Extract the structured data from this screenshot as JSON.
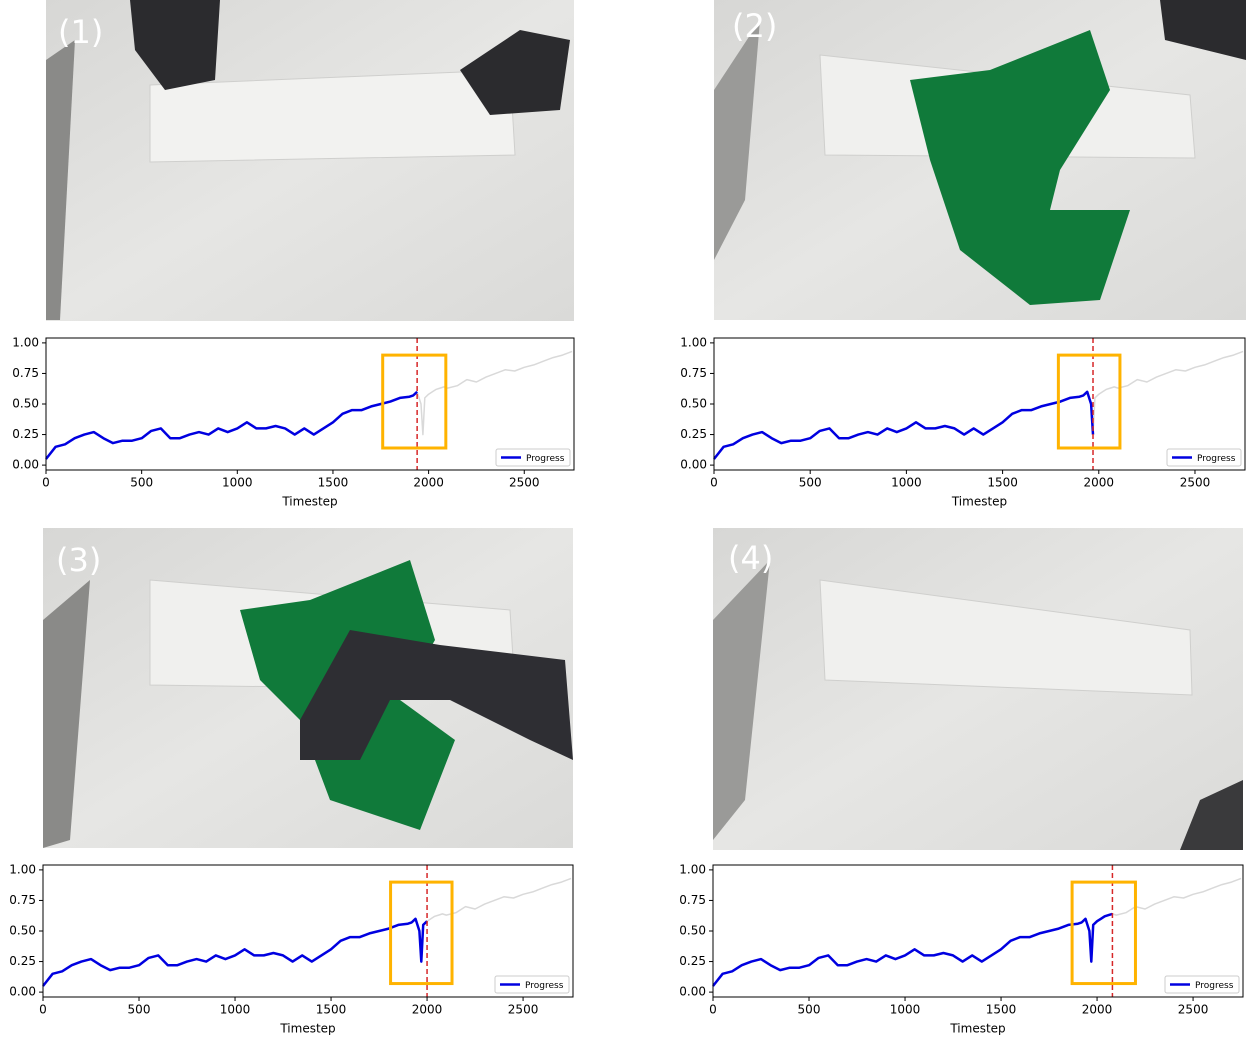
{
  "chart_data": [
    {
      "type": "line",
      "panel_label": "(1)",
      "x_label": "Timestep",
      "x": [
        0,
        50,
        100,
        150,
        200,
        250,
        300,
        350,
        400,
        450,
        500,
        550,
        600,
        650,
        700,
        750,
        800,
        850,
        900,
        950,
        1000,
        1050,
        1100,
        1150,
        1200,
        1250,
        1300,
        1350,
        1400,
        1450,
        1500,
        1550,
        1600,
        1650,
        1700,
        1750,
        1800,
        1850,
        1900,
        1920,
        1940,
        1960,
        1970,
        1980,
        2000,
        2020,
        2040,
        2060,
        2080,
        2100,
        2150,
        2200,
        2250,
        2300,
        2350,
        2400,
        2450,
        2500,
        2550,
        2600,
        2650,
        2700,
        2750
      ],
      "series": [
        {
          "color": "#d9d9d9",
          "values": [
            0.05,
            0.15,
            0.17,
            0.22,
            0.25,
            0.27,
            0.22,
            0.18,
            0.2,
            0.2,
            0.22,
            0.28,
            0.3,
            0.22,
            0.22,
            0.25,
            0.27,
            0.25,
            0.3,
            0.27,
            0.3,
            0.35,
            0.3,
            0.3,
            0.32,
            0.3,
            0.25,
            0.3,
            0.25,
            0.3,
            0.35,
            0.42,
            0.45,
            0.45,
            0.48,
            0.5,
            0.52,
            0.55,
            0.56,
            0.57,
            0.6,
            0.5,
            0.25,
            0.55,
            0.58,
            0.6,
            0.62,
            0.63,
            0.64,
            0.63,
            0.65,
            0.7,
            0.68,
            0.72,
            0.75,
            0.78,
            0.77,
            0.8,
            0.82,
            0.85,
            0.88,
            0.9,
            0.93
          ]
        },
        {
          "name": "Progress",
          "color": "#0000e0",
          "values": [
            0.05,
            0.15,
            0.17,
            0.22,
            0.25,
            0.27,
            0.22,
            0.18,
            0.2,
            0.2,
            0.22,
            0.28,
            0.3,
            0.22,
            0.22,
            0.25,
            0.27,
            0.25,
            0.3,
            0.27,
            0.3,
            0.35,
            0.3,
            0.3,
            0.32,
            0.3,
            0.25,
            0.3,
            0.25,
            0.3,
            0.35,
            0.42,
            0.45,
            0.45,
            0.48,
            0.5,
            0.52,
            0.55,
            0.56,
            0.57,
            0.6,
            null,
            null,
            null,
            null,
            null,
            null,
            null,
            null,
            null,
            null,
            null,
            null,
            null,
            null,
            null,
            null,
            null,
            null,
            null,
            null,
            null,
            null
          ]
        }
      ],
      "current_x": 1940,
      "current_color": "#d62728",
      "highlight": {
        "xlim": [
          1760,
          2090
        ],
        "ylim": [
          0.14,
          0.9
        ],
        "color": "#ffb300"
      },
      "xlim": [
        0,
        2760
      ],
      "ylim": [
        -0.04,
        1.04
      ],
      "xticks": [
        0,
        500,
        1000,
        1500,
        2000,
        2500
      ],
      "yticks": [
        {
          "value": 0,
          "label": "0.00"
        },
        {
          "value": 0.25,
          "label": "0.25"
        },
        {
          "value": 0.5,
          "label": "0.50"
        },
        {
          "value": 0.75,
          "label": "0.75"
        },
        {
          "value": 1,
          "label": "1.00"
        }
      ],
      "legend": "lower right"
    },
    {
      "type": "line",
      "panel_label": "(2)",
      "x_label": "Timestep",
      "x": [
        0,
        50,
        100,
        150,
        200,
        250,
        300,
        350,
        400,
        450,
        500,
        550,
        600,
        650,
        700,
        750,
        800,
        850,
        900,
        950,
        1000,
        1050,
        1100,
        1150,
        1200,
        1250,
        1300,
        1350,
        1400,
        1450,
        1500,
        1550,
        1600,
        1650,
        1700,
        1750,
        1800,
        1850,
        1900,
        1920,
        1940,
        1960,
        1970,
        1980,
        2000,
        2020,
        2040,
        2060,
        2080,
        2100,
        2150,
        2200,
        2250,
        2300,
        2350,
        2400,
        2450,
        2500,
        2550,
        2600,
        2650,
        2700,
        2750
      ],
      "series": [
        {
          "color": "#d9d9d9",
          "values": [
            0.05,
            0.15,
            0.17,
            0.22,
            0.25,
            0.27,
            0.22,
            0.18,
            0.2,
            0.2,
            0.22,
            0.28,
            0.3,
            0.22,
            0.22,
            0.25,
            0.27,
            0.25,
            0.3,
            0.27,
            0.3,
            0.35,
            0.3,
            0.3,
            0.32,
            0.3,
            0.25,
            0.3,
            0.25,
            0.3,
            0.35,
            0.42,
            0.45,
            0.45,
            0.48,
            0.5,
            0.52,
            0.55,
            0.56,
            0.57,
            0.6,
            0.5,
            0.25,
            0.55,
            0.58,
            0.6,
            0.62,
            0.63,
            0.64,
            0.63,
            0.65,
            0.7,
            0.68,
            0.72,
            0.75,
            0.78,
            0.77,
            0.8,
            0.82,
            0.85,
            0.88,
            0.9,
            0.93
          ]
        },
        {
          "name": "Progress",
          "color": "#0000e0",
          "values": [
            0.05,
            0.15,
            0.17,
            0.22,
            0.25,
            0.27,
            0.22,
            0.18,
            0.2,
            0.2,
            0.22,
            0.28,
            0.3,
            0.22,
            0.22,
            0.25,
            0.27,
            0.25,
            0.3,
            0.27,
            0.3,
            0.35,
            0.3,
            0.3,
            0.32,
            0.3,
            0.25,
            0.3,
            0.25,
            0.3,
            0.35,
            0.42,
            0.45,
            0.45,
            0.48,
            0.5,
            0.52,
            0.55,
            0.56,
            0.57,
            0.6,
            0.5,
            0.25,
            null,
            null,
            null,
            null,
            null,
            null,
            null,
            null,
            null,
            null,
            null,
            null,
            null,
            null,
            null,
            null,
            null,
            null,
            null,
            null
          ]
        }
      ],
      "current_x": 1970,
      "current_color": "#d62728",
      "highlight": {
        "xlim": [
          1790,
          2110
        ],
        "ylim": [
          0.14,
          0.9
        ],
        "color": "#ffb300"
      },
      "xlim": [
        0,
        2760
      ],
      "ylim": [
        -0.04,
        1.04
      ],
      "xticks": [
        0,
        500,
        1000,
        1500,
        2000,
        2500
      ],
      "yticks": [
        {
          "value": 0,
          "label": "0.00"
        },
        {
          "value": 0.25,
          "label": "0.25"
        },
        {
          "value": 0.5,
          "label": "0.50"
        },
        {
          "value": 0.75,
          "label": "0.75"
        },
        {
          "value": 1,
          "label": "1.00"
        }
      ],
      "legend": "lower right"
    },
    {
      "type": "line",
      "panel_label": "(3)",
      "x_label": "Timestep",
      "x": [
        0,
        50,
        100,
        150,
        200,
        250,
        300,
        350,
        400,
        450,
        500,
        550,
        600,
        650,
        700,
        750,
        800,
        850,
        900,
        950,
        1000,
        1050,
        1100,
        1150,
        1200,
        1250,
        1300,
        1350,
        1400,
        1450,
        1500,
        1550,
        1600,
        1650,
        1700,
        1750,
        1800,
        1850,
        1900,
        1920,
        1940,
        1960,
        1970,
        1980,
        2000,
        2020,
        2040,
        2060,
        2080,
        2100,
        2150,
        2200,
        2250,
        2300,
        2350,
        2400,
        2450,
        2500,
        2550,
        2600,
        2650,
        2700,
        2750
      ],
      "series": [
        {
          "color": "#d9d9d9",
          "values": [
            0.05,
            0.15,
            0.17,
            0.22,
            0.25,
            0.27,
            0.22,
            0.18,
            0.2,
            0.2,
            0.22,
            0.28,
            0.3,
            0.22,
            0.22,
            0.25,
            0.27,
            0.25,
            0.3,
            0.27,
            0.3,
            0.35,
            0.3,
            0.3,
            0.32,
            0.3,
            0.25,
            0.3,
            0.25,
            0.3,
            0.35,
            0.42,
            0.45,
            0.45,
            0.48,
            0.5,
            0.52,
            0.55,
            0.56,
            0.57,
            0.6,
            0.5,
            0.25,
            0.55,
            0.58,
            0.6,
            0.62,
            0.63,
            0.64,
            0.63,
            0.65,
            0.7,
            0.68,
            0.72,
            0.75,
            0.78,
            0.77,
            0.8,
            0.82,
            0.85,
            0.88,
            0.9,
            0.93
          ]
        },
        {
          "name": "Progress",
          "color": "#0000e0",
          "values": [
            0.05,
            0.15,
            0.17,
            0.22,
            0.25,
            0.27,
            0.22,
            0.18,
            0.2,
            0.2,
            0.22,
            0.28,
            0.3,
            0.22,
            0.22,
            0.25,
            0.27,
            0.25,
            0.3,
            0.27,
            0.3,
            0.35,
            0.3,
            0.3,
            0.32,
            0.3,
            0.25,
            0.3,
            0.25,
            0.3,
            0.35,
            0.42,
            0.45,
            0.45,
            0.48,
            0.5,
            0.52,
            0.55,
            0.56,
            0.57,
            0.6,
            0.5,
            0.25,
            0.55,
            0.58,
            null,
            null,
            null,
            null,
            null,
            null,
            null,
            null,
            null,
            null,
            null,
            null,
            null,
            null,
            null,
            null,
            null,
            null
          ]
        }
      ],
      "current_x": 2000,
      "current_color": "#d62728",
      "highlight": {
        "xlim": [
          1810,
          2130
        ],
        "ylim": [
          0.07,
          0.9
        ],
        "color": "#ffb300"
      },
      "xlim": [
        0,
        2760
      ],
      "ylim": [
        -0.04,
        1.04
      ],
      "xticks": [
        0,
        500,
        1000,
        1500,
        2000,
        2500
      ],
      "yticks": [
        {
          "value": 0,
          "label": "0.00"
        },
        {
          "value": 0.25,
          "label": "0.25"
        },
        {
          "value": 0.5,
          "label": "0.50"
        },
        {
          "value": 0.75,
          "label": "0.75"
        },
        {
          "value": 1,
          "label": "1.00"
        }
      ],
      "legend": "lower right"
    },
    {
      "type": "line",
      "panel_label": "(4)",
      "x_label": "Timestep",
      "x": [
        0,
        50,
        100,
        150,
        200,
        250,
        300,
        350,
        400,
        450,
        500,
        550,
        600,
        650,
        700,
        750,
        800,
        850,
        900,
        950,
        1000,
        1050,
        1100,
        1150,
        1200,
        1250,
        1300,
        1350,
        1400,
        1450,
        1500,
        1550,
        1600,
        1650,
        1700,
        1750,
        1800,
        1850,
        1900,
        1920,
        1940,
        1960,
        1970,
        1980,
        2000,
        2020,
        2040,
        2060,
        2080,
        2100,
        2150,
        2200,
        2250,
        2300,
        2350,
        2400,
        2450,
        2500,
        2550,
        2600,
        2650,
        2700,
        2750
      ],
      "series": [
        {
          "color": "#d9d9d9",
          "values": [
            0.05,
            0.15,
            0.17,
            0.22,
            0.25,
            0.27,
            0.22,
            0.18,
            0.2,
            0.2,
            0.22,
            0.28,
            0.3,
            0.22,
            0.22,
            0.25,
            0.27,
            0.25,
            0.3,
            0.27,
            0.3,
            0.35,
            0.3,
            0.3,
            0.32,
            0.3,
            0.25,
            0.3,
            0.25,
            0.3,
            0.35,
            0.42,
            0.45,
            0.45,
            0.48,
            0.5,
            0.52,
            0.55,
            0.56,
            0.57,
            0.6,
            0.5,
            0.25,
            0.55,
            0.58,
            0.6,
            0.62,
            0.63,
            0.64,
            0.63,
            0.65,
            0.7,
            0.68,
            0.72,
            0.75,
            0.78,
            0.77,
            0.8,
            0.82,
            0.85,
            0.88,
            0.9,
            0.93
          ]
        },
        {
          "name": "Progress",
          "color": "#0000e0",
          "values": [
            0.05,
            0.15,
            0.17,
            0.22,
            0.25,
            0.27,
            0.22,
            0.18,
            0.2,
            0.2,
            0.22,
            0.28,
            0.3,
            0.22,
            0.22,
            0.25,
            0.27,
            0.25,
            0.3,
            0.27,
            0.3,
            0.35,
            0.3,
            0.3,
            0.32,
            0.3,
            0.25,
            0.3,
            0.25,
            0.3,
            0.35,
            0.42,
            0.45,
            0.45,
            0.48,
            0.5,
            0.52,
            0.55,
            0.56,
            0.57,
            0.6,
            0.5,
            0.25,
            0.55,
            0.58,
            0.6,
            0.62,
            0.63,
            0.64,
            null,
            null,
            null,
            null,
            null,
            null,
            null,
            null,
            null,
            null,
            null,
            null,
            null,
            null
          ]
        }
      ],
      "current_x": 2080,
      "current_color": "#d62728",
      "highlight": {
        "xlim": [
          1870,
          2200
        ],
        "ylim": [
          0.07,
          0.9
        ],
        "color": "#ffb300"
      },
      "xlim": [
        0,
        2760
      ],
      "ylim": [
        -0.04,
        1.04
      ],
      "xticks": [
        0,
        500,
        1000,
        1500,
        2000,
        2500
      ],
      "yticks": [
        {
          "value": 0,
          "label": "0.00"
        },
        {
          "value": 0.25,
          "label": "0.25"
        },
        {
          "value": 0.5,
          "label": "0.50"
        },
        {
          "value": 0.75,
          "label": "0.75"
        },
        {
          "value": 1,
          "label": "1.00"
        }
      ],
      "legend": "lower right"
    }
  ]
}
